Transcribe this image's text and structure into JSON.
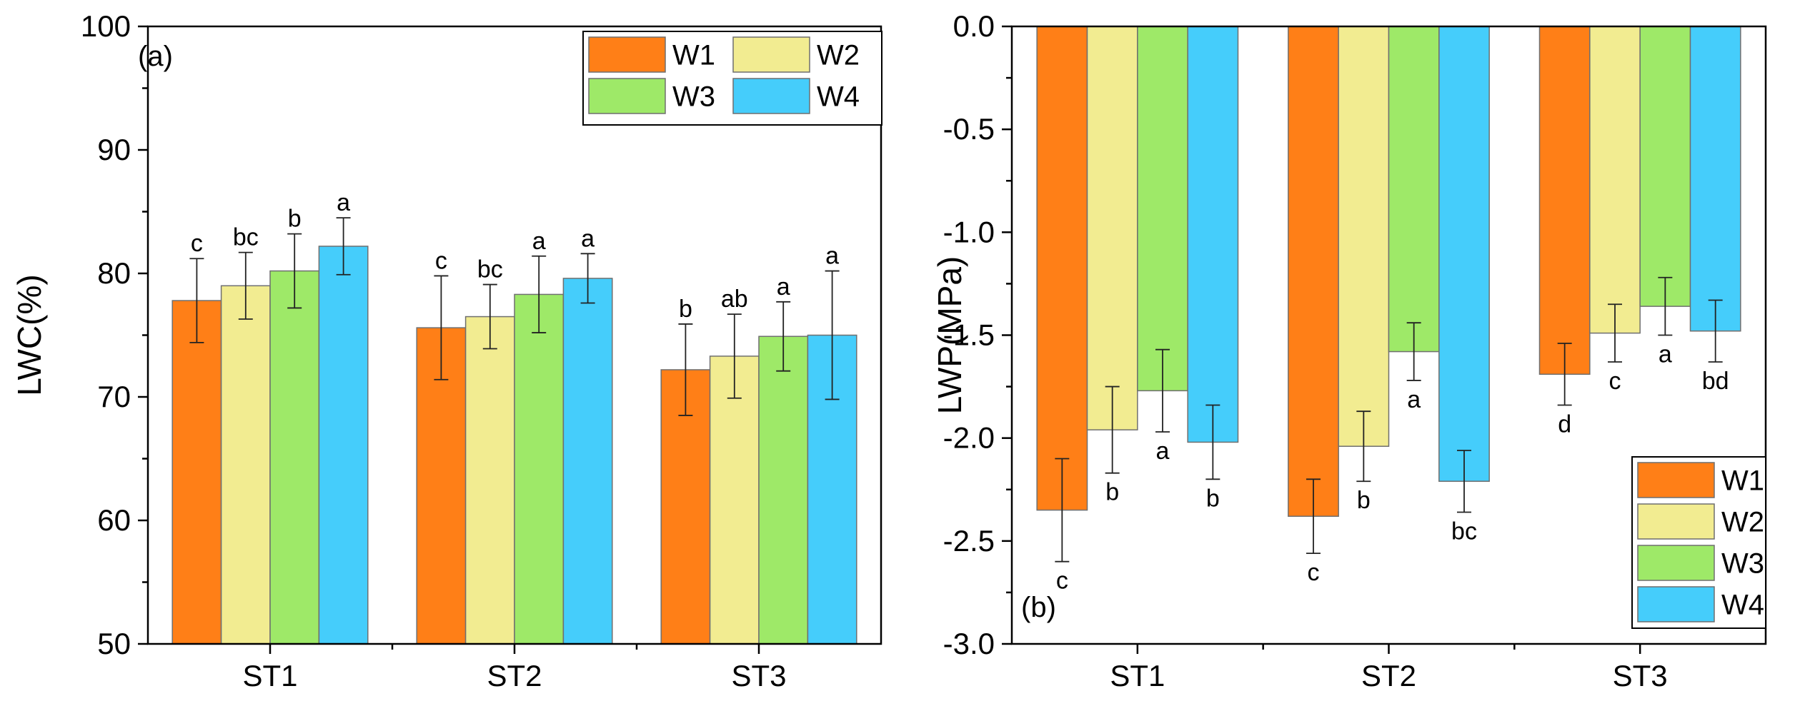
{
  "series_meta": [
    {
      "name": "W1",
      "color": "#ff7f17"
    },
    {
      "name": "W2",
      "color": "#f2ec91"
    },
    {
      "name": "W3",
      "color": "#9ee968"
    },
    {
      "name": "W4",
      "color": "#45cdfb"
    }
  ],
  "chart_data": [
    {
      "type": "bar",
      "panel_label": "(a)",
      "title": "",
      "xlabel": "",
      "ylabel": "LWC(%)",
      "ylim": [
        50,
        100
      ],
      "yticks": [
        50,
        60,
        70,
        80,
        90,
        100
      ],
      "ytick_labels": [
        "50",
        "60",
        "70",
        "80",
        "90",
        "100"
      ],
      "categories": [
        "ST1",
        "ST2",
        "ST3"
      ],
      "legend_position": "top-right",
      "series": [
        {
          "name": "W1",
          "values": [
            77.8,
            75.6,
            72.2
          ],
          "errors": [
            3.4,
            4.2,
            3.7
          ],
          "letters": [
            "c",
            "c",
            "b"
          ]
        },
        {
          "name": "W2",
          "values": [
            79.0,
            76.5,
            73.3
          ],
          "errors": [
            2.7,
            2.6,
            3.4
          ],
          "letters": [
            "bc",
            "bc",
            "ab"
          ]
        },
        {
          "name": "W3",
          "values": [
            80.2,
            78.3,
            74.9
          ],
          "errors": [
            3.0,
            3.1,
            2.8
          ],
          "letters": [
            "b",
            "a",
            "a"
          ]
        },
        {
          "name": "W4",
          "values": [
            82.2,
            79.6,
            75.0
          ],
          "errors": [
            2.3,
            2.0,
            5.2
          ],
          "letters": [
            "a",
            "a",
            "a"
          ]
        }
      ]
    },
    {
      "type": "bar",
      "panel_label": "(b)",
      "title": "",
      "xlabel": "",
      "ylabel": "LWP(MPa)",
      "ylim": [
        -3.0,
        0.0
      ],
      "yticks": [
        0.0,
        -0.5,
        -1.0,
        -1.5,
        -2.0,
        -2.5,
        -3.0
      ],
      "ytick_labels": [
        "0.0",
        "-0.5",
        "-1.0",
        "-1.5",
        "-2.0",
        "-2.5",
        "-3.0"
      ],
      "categories": [
        "ST1",
        "ST2",
        "ST3"
      ],
      "legend_position": "bottom-right",
      "series": [
        {
          "name": "W1",
          "values": [
            -2.35,
            -2.38,
            -1.69
          ],
          "errors": [
            0.25,
            0.18,
            0.15
          ],
          "letters": [
            "c",
            "c",
            "d"
          ]
        },
        {
          "name": "W2",
          "values": [
            -1.96,
            -2.04,
            -1.49
          ],
          "errors": [
            0.21,
            0.17,
            0.14
          ],
          "letters": [
            "b",
            "b",
            "c"
          ]
        },
        {
          "name": "W3",
          "values": [
            -1.77,
            -1.58,
            -1.36
          ],
          "errors": [
            0.2,
            0.14,
            0.14
          ],
          "letters": [
            "a",
            "a",
            "a"
          ]
        },
        {
          "name": "W4",
          "values": [
            -2.02,
            -2.21,
            -1.48
          ],
          "errors": [
            0.18,
            0.15,
            0.15
          ],
          "letters": [
            "b",
            "bc",
            "bd"
          ]
        }
      ]
    }
  ]
}
